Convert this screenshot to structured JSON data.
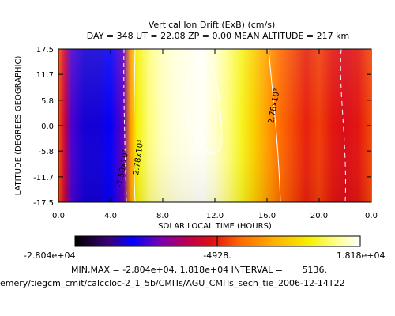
{
  "chart_data": {
    "type": "heatmap",
    "title": "Vertical Ion Drift (ExB) (cm/s)",
    "subtitle": "DAY = 348   UT = 22.08   ZP =    0.00  MEAN ALTITUDE = 217 km",
    "xlabel": "SOLAR LOCAL TIME (HOURS)",
    "ylabel": "LATITUDE (DEGREES GEOGRAPHIC)",
    "xlim": [
      0.0,
      24.0
    ],
    "ylim": [
      -17.5,
      17.5
    ],
    "x_ticks": [
      "0.0",
      "4.0",
      "8.0",
      "12.0",
      "16.0",
      "20.0",
      "0.0"
    ],
    "y_ticks": [
      "17.5",
      "11.7",
      "5.8",
      "0.0",
      "-5.8",
      "-11.7",
      "-17.5"
    ],
    "y_tick_values": [
      17.5,
      11.7,
      5.8,
      0.0,
      -5.8,
      -11.7,
      -17.5
    ],
    "x_profile": {
      "x": [
        0,
        0.5,
        1,
        2,
        3,
        4,
        5,
        5.5,
        6,
        7,
        8,
        9,
        10,
        11,
        12,
        13,
        14,
        15,
        16,
        17,
        18,
        19,
        20,
        21,
        22,
        23,
        24
      ],
      "values": [
        -2500,
        -9000,
        -16000,
        -20000,
        -20000,
        -19000,
        -15000,
        2000,
        10000,
        14000,
        16000,
        17000,
        17500,
        18000,
        16500,
        14000,
        11000,
        7000,
        3000,
        -1000,
        -3000,
        -5000,
        -3500,
        -5500,
        -6500,
        -5500,
        -3000
      ]
    },
    "contours": [
      {
        "label": "-7.50x10²",
        "style": "dashed"
      },
      {
        "label": "2.78x10³",
        "style": "solid"
      },
      {
        "label": "2.78x10³",
        "style": "solid"
      }
    ],
    "colorbar": {
      "min_label": "-2.804e+04",
      "mid_label": "-4928.",
      "max_label": "1.818e+04",
      "min": -28040,
      "max": 18180
    },
    "stats_text": "MIN,MAX = -2.804e+04, 1.818e+04 INTERVAL =       5136.",
    "file_path": "emery/tiegcm_cmit/calccloc-2_1_5b/CMITs/AGU_CMITs_sech_tie_2006-12-14T22"
  }
}
